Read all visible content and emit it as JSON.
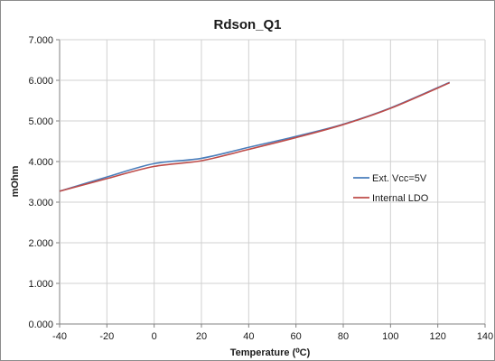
{
  "chart_data": {
    "type": "line",
    "title": "Rdson_Q1",
    "xlabel": "Temperature (⁰C)",
    "ylabel": "mOhm",
    "xlim": [
      -40,
      140
    ],
    "ylim": [
      0,
      7
    ],
    "x_ticks": [
      "-40",
      "-20",
      "0",
      "20",
      "40",
      "60",
      "80",
      "100",
      "120",
      "140"
    ],
    "y_ticks": [
      "0.000",
      "1.000",
      "2.000",
      "3.000",
      "4.000",
      "5.000",
      "6.000",
      "7.000"
    ],
    "grid": true,
    "legend_position": "right",
    "series": [
      {
        "name": "Ext. Vcc=5V",
        "color": "#4a7ebb",
        "x": [
          -40,
          -20,
          0,
          20,
          40,
          60,
          80,
          100,
          125
        ],
        "y": [
          3.27,
          3.62,
          3.95,
          4.08,
          4.35,
          4.62,
          4.92,
          5.32,
          5.95
        ]
      },
      {
        "name": "Internal LDO",
        "color": "#be4b48",
        "x": [
          -40,
          -20,
          0,
          20,
          40,
          60,
          80,
          100,
          125
        ],
        "y": [
          3.27,
          3.58,
          3.88,
          4.02,
          4.3,
          4.59,
          4.91,
          5.31,
          5.94
        ]
      }
    ]
  }
}
